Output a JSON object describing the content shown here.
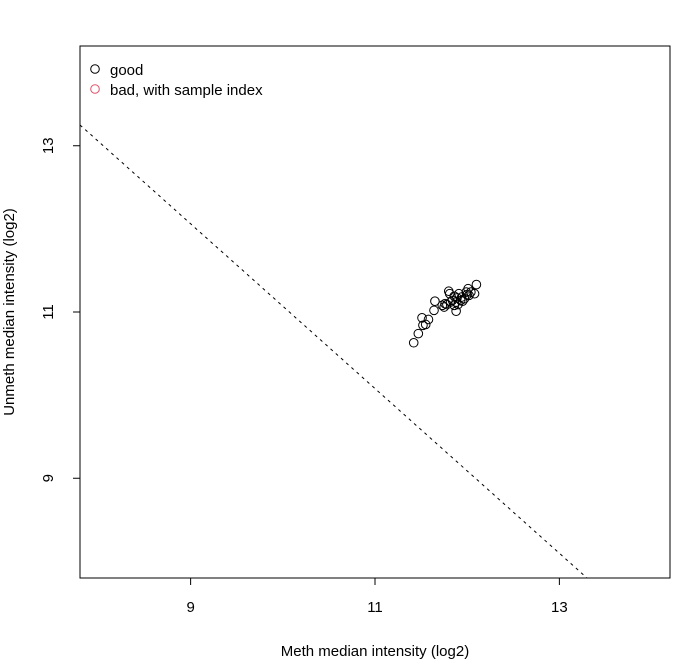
{
  "chart_data": {
    "type": "scatter",
    "xlabel": "Meth median intensity (log2)",
    "ylabel": "Unmeth median intensity (log2)",
    "xlim": [
      7.8,
      14.2
    ],
    "ylim": [
      7.8,
      14.2
    ],
    "xticks": [
      9,
      11,
      13
    ],
    "yticks": [
      9,
      11,
      13
    ],
    "grid": false,
    "legend_position": "top-left",
    "legend": [
      {
        "label": "good",
        "color": "#000000"
      },
      {
        "label": "bad, with sample index",
        "color": "#DF536B"
      }
    ],
    "cutoff_line": {
      "style": "dashed",
      "color": "#000000",
      "x": [
        7.8,
        13.3
      ],
      "y": [
        13.25,
        7.8
      ]
    },
    "series": [
      {
        "name": "good",
        "color": "#000000",
        "points": [
          [
            11.42,
            10.63
          ],
          [
            11.47,
            10.74
          ],
          [
            11.52,
            10.84
          ],
          [
            11.55,
            10.85
          ],
          [
            11.51,
            10.93
          ],
          [
            11.58,
            10.91
          ],
          [
            11.64,
            11.02
          ],
          [
            11.65,
            11.13
          ],
          [
            11.73,
            11.08
          ],
          [
            11.75,
            11.06
          ],
          [
            11.78,
            11.09
          ],
          [
            11.8,
            11.25
          ],
          [
            11.81,
            11.22
          ],
          [
            11.84,
            11.14
          ],
          [
            11.86,
            11.08
          ],
          [
            11.86,
            11.19
          ],
          [
            11.88,
            11.12
          ],
          [
            11.89,
            11.17
          ],
          [
            11.9,
            11.09
          ],
          [
            11.91,
            11.22
          ],
          [
            11.88,
            11.01
          ],
          [
            11.93,
            11.14
          ],
          [
            11.94,
            11.18
          ],
          [
            11.95,
            11.13
          ],
          [
            11.97,
            11.16
          ],
          [
            11.99,
            11.24
          ],
          [
            12.0,
            11.21
          ],
          [
            12.02,
            11.2
          ],
          [
            12.01,
            11.28
          ],
          [
            12.04,
            11.24
          ],
          [
            12.08,
            11.22
          ],
          [
            12.1,
            11.33
          ],
          [
            11.82,
            11.12
          ],
          [
            11.76,
            11.1
          ]
        ]
      },
      {
        "name": "bad, with sample index",
        "color": "#DF536B",
        "points": []
      }
    ]
  }
}
